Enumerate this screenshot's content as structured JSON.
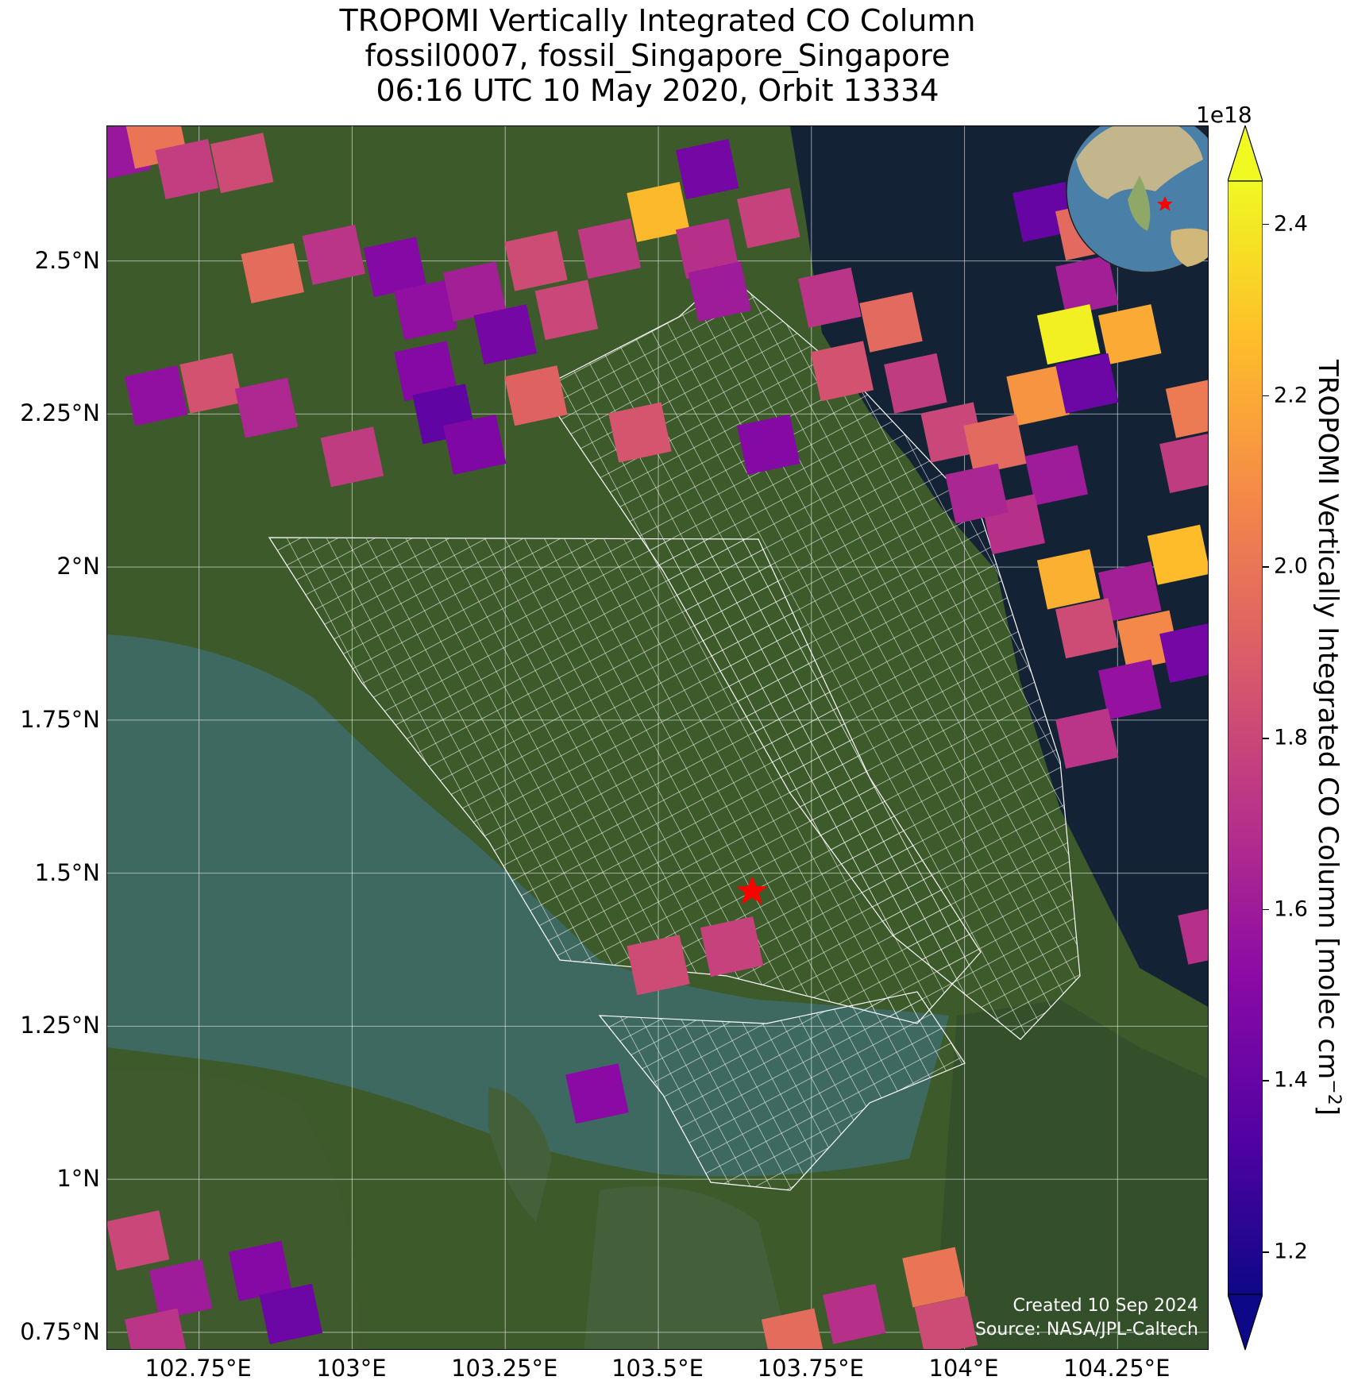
{
  "title": {
    "line1": "TROPOMI Vertically Integrated CO Column",
    "line2": "fossil0007, fossil_Singapore_Singapore",
    "line3": "06:16 UTC 10 May 2020, Orbit 13334"
  },
  "map": {
    "lon_range": [
      102.6,
      104.4
    ],
    "lat_range": [
      0.72,
      2.72
    ],
    "x_ticks": [
      "102.75°E",
      "103°E",
      "103.25°E",
      "103.5°E",
      "103.75°E",
      "104°E",
      "104.25°E"
    ],
    "x_tick_values": [
      102.75,
      103.0,
      103.25,
      103.5,
      103.75,
      104.0,
      104.25
    ],
    "y_ticks": [
      "2.5°N",
      "2.25°N",
      "2°N",
      "1.75°N",
      "1.5°N",
      "1.25°N",
      "1°N",
      "0.75°N"
    ],
    "y_tick_values": [
      2.5,
      2.25,
      2.0,
      1.75,
      1.5,
      1.25,
      1.0,
      0.75
    ],
    "grid": true,
    "basemap": "satellite imagery",
    "target_marker": {
      "lon": 103.653,
      "lat": 1.47,
      "symbol": "star",
      "color": "#ff0000"
    },
    "inset_globe": {
      "position": "top-right",
      "marker_color": "#ff0000"
    },
    "credit_line1": "Created 10 Sep 2024",
    "credit_line2": "Source: NASA/JPL-Caltech"
  },
  "colorbar": {
    "label": "TROPOMI Vertically Integrated CO Column [molec cm",
    "label_sup": "−2",
    "label_close": "]",
    "exponent": "1e18",
    "min": 1.15,
    "max": 2.45,
    "ticks": [
      "1.2",
      "1.4",
      "1.6",
      "1.8",
      "2.0",
      "2.2",
      "2.4"
    ],
    "tick_values": [
      1.2,
      1.4,
      1.6,
      1.8,
      2.0,
      2.2,
      2.4
    ],
    "colormap": "plasma",
    "extend": "both",
    "stops": [
      "#0d0887",
      "#5302a3",
      "#8b0aa5",
      "#b83289",
      "#db5c68",
      "#f48849",
      "#febd2a",
      "#f0f921"
    ]
  },
  "chart_data": {
    "type": "heatmap",
    "units": "molec cm^-2 (x1e18)",
    "pixels": [
      {
        "lon": 102.62,
        "lat": 2.68,
        "value": 1.58
      },
      {
        "lon": 102.68,
        "lat": 2.7,
        "value": 2.0
      },
      {
        "lon": 102.73,
        "lat": 2.65,
        "value": 1.76
      },
      {
        "lon": 102.82,
        "lat": 2.66,
        "value": 1.82
      },
      {
        "lon": 102.87,
        "lat": 2.48,
        "value": 1.96
      },
      {
        "lon": 102.97,
        "lat": 2.51,
        "value": 1.72
      },
      {
        "lon": 103.07,
        "lat": 2.49,
        "value": 1.5
      },
      {
        "lon": 103.12,
        "lat": 2.42,
        "value": 1.55
      },
      {
        "lon": 103.2,
        "lat": 2.45,
        "value": 1.62
      },
      {
        "lon": 103.3,
        "lat": 2.5,
        "value": 1.82
      },
      {
        "lon": 103.25,
        "lat": 2.38,
        "value": 1.45
      },
      {
        "lon": 103.12,
        "lat": 2.32,
        "value": 1.5
      },
      {
        "lon": 103.15,
        "lat": 2.25,
        "value": 1.38
      },
      {
        "lon": 103.2,
        "lat": 2.2,
        "value": 1.48
      },
      {
        "lon": 103.35,
        "lat": 2.42,
        "value": 1.8
      },
      {
        "lon": 103.42,
        "lat": 2.52,
        "value": 1.74
      },
      {
        "lon": 103.5,
        "lat": 2.58,
        "value": 2.25
      },
      {
        "lon": 103.58,
        "lat": 2.52,
        "value": 1.7
      },
      {
        "lon": 103.6,
        "lat": 2.45,
        "value": 1.6
      },
      {
        "lon": 103.68,
        "lat": 2.57,
        "value": 1.78
      },
      {
        "lon": 103.58,
        "lat": 2.65,
        "value": 1.45
      },
      {
        "lon": 103.78,
        "lat": 2.44,
        "value": 1.72
      },
      {
        "lon": 103.88,
        "lat": 2.4,
        "value": 1.95
      },
      {
        "lon": 103.92,
        "lat": 2.3,
        "value": 1.75
      },
      {
        "lon": 103.98,
        "lat": 2.22,
        "value": 1.8
      },
      {
        "lon": 103.68,
        "lat": 2.2,
        "value": 1.5
      },
      {
        "lon": 103.8,
        "lat": 2.32,
        "value": 1.85
      },
      {
        "lon": 102.68,
        "lat": 2.28,
        "value": 1.55
      },
      {
        "lon": 102.77,
        "lat": 2.3,
        "value": 1.85
      },
      {
        "lon": 102.86,
        "lat": 2.26,
        "value": 1.66
      },
      {
        "lon": 103.0,
        "lat": 2.18,
        "value": 1.75
      },
      {
        "lon": 103.3,
        "lat": 2.28,
        "value": 1.92
      },
      {
        "lon": 103.47,
        "lat": 2.22,
        "value": 1.86
      },
      {
        "lon": 104.13,
        "lat": 2.58,
        "value": 1.4
      },
      {
        "lon": 104.2,
        "lat": 2.55,
        "value": 1.95
      },
      {
        "lon": 104.2,
        "lat": 2.46,
        "value": 1.62
      },
      {
        "lon": 104.17,
        "lat": 2.38,
        "value": 2.42
      },
      {
        "lon": 104.27,
        "lat": 2.38,
        "value": 2.2
      },
      {
        "lon": 104.12,
        "lat": 2.28,
        "value": 2.12
      },
      {
        "lon": 104.2,
        "lat": 2.3,
        "value": 1.42
      },
      {
        "lon": 104.05,
        "lat": 2.2,
        "value": 1.95
      },
      {
        "lon": 104.15,
        "lat": 2.15,
        "value": 1.6
      },
      {
        "lon": 104.08,
        "lat": 2.07,
        "value": 1.7
      },
      {
        "lon": 104.02,
        "lat": 2.12,
        "value": 1.65
      },
      {
        "lon": 104.17,
        "lat": 1.98,
        "value": 2.22
      },
      {
        "lon": 104.27,
        "lat": 1.96,
        "value": 1.62
      },
      {
        "lon": 104.35,
        "lat": 2.02,
        "value": 2.26
      },
      {
        "lon": 104.2,
        "lat": 1.9,
        "value": 1.82
      },
      {
        "lon": 104.3,
        "lat": 1.88,
        "value": 2.08
      },
      {
        "lon": 104.37,
        "lat": 1.86,
        "value": 1.45
      },
      {
        "lon": 104.27,
        "lat": 1.8,
        "value": 1.56
      },
      {
        "lon": 104.2,
        "lat": 1.72,
        "value": 1.72
      },
      {
        "lon": 104.38,
        "lat": 2.26,
        "value": 2.02
      },
      {
        "lon": 104.37,
        "lat": 2.17,
        "value": 1.75
      },
      {
        "lon": 104.4,
        "lat": 1.4,
        "value": 1.7
      },
      {
        "lon": 103.62,
        "lat": 1.38,
        "value": 1.78
      },
      {
        "lon": 103.5,
        "lat": 1.35,
        "value": 1.82
      },
      {
        "lon": 103.4,
        "lat": 1.14,
        "value": 1.52
      },
      {
        "lon": 102.65,
        "lat": 0.9,
        "value": 1.8
      },
      {
        "lon": 102.72,
        "lat": 0.82,
        "value": 1.6
      },
      {
        "lon": 102.85,
        "lat": 0.85,
        "value": 1.5
      },
      {
        "lon": 102.9,
        "lat": 0.78,
        "value": 1.42
      },
      {
        "lon": 102.68,
        "lat": 0.74,
        "value": 1.72
      },
      {
        "lon": 103.82,
        "lat": 0.78,
        "value": 1.7
      },
      {
        "lon": 103.95,
        "lat": 0.84,
        "value": 2.0
      },
      {
        "lon": 103.97,
        "lat": 0.76,
        "value": 1.82
      },
      {
        "lon": 103.72,
        "lat": 0.74,
        "value": 1.96
      }
    ]
  }
}
